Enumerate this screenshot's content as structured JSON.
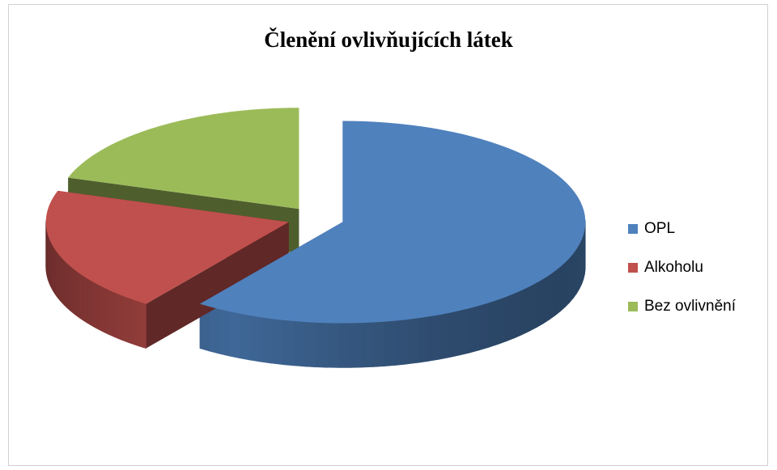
{
  "chart_data": {
    "type": "pie",
    "title": "Členění ovlivňujících látek",
    "categories": [
      "OPL",
      "Alkoholu",
      "Bez ovlivnění"
    ],
    "values": [
      60,
      20,
      20
    ],
    "colors": [
      "#4f81bd",
      "#c0504d",
      "#9bbb59"
    ],
    "legend": "right"
  }
}
